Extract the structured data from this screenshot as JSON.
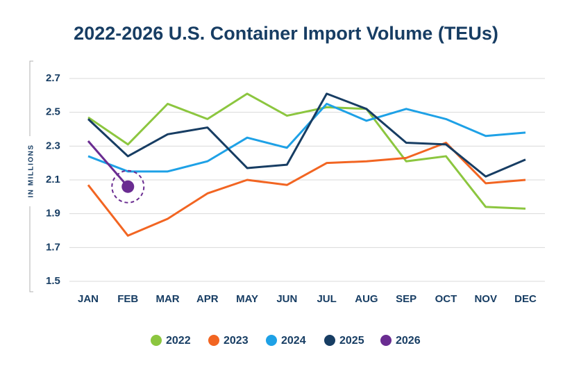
{
  "chart_data": {
    "type": "line",
    "title": "2022-2026 U.S. Container Import Volume (TEUs)",
    "y_axis_label": "IN MILLIONS",
    "categories": [
      "JAN",
      "FEB",
      "MAR",
      "APR",
      "MAY",
      "JUN",
      "JUL",
      "AUG",
      "SEP",
      "OCT",
      "NOV",
      "DEC"
    ],
    "series": [
      {
        "name": "2022",
        "color": "#8cc63f",
        "values": [
          2.47,
          2.31,
          2.55,
          2.46,
          2.61,
          2.48,
          2.53,
          2.52,
          2.21,
          2.24,
          1.94,
          1.93
        ]
      },
      {
        "name": "2023",
        "color": "#f26522",
        "values": [
          2.07,
          1.77,
          1.87,
          2.02,
          2.1,
          2.07,
          2.2,
          2.21,
          2.23,
          2.32,
          2.08,
          2.1
        ]
      },
      {
        "name": "2024",
        "color": "#1ea1e6",
        "values": [
          2.24,
          2.15,
          2.15,
          2.21,
          2.35,
          2.29,
          2.55,
          2.45,
          2.52,
          2.46,
          2.36,
          2.38
        ]
      },
      {
        "name": "2025",
        "color": "#173d63",
        "values": [
          2.46,
          2.24,
          2.37,
          2.41,
          2.17,
          2.19,
          2.61,
          2.52,
          2.32,
          2.31,
          2.12,
          2.22
        ]
      },
      {
        "name": "2026",
        "color": "#6a2c91",
        "values": [
          2.33,
          2.06,
          null,
          null,
          null,
          null,
          null,
          null,
          null,
          null,
          null,
          null
        ]
      }
    ],
    "ylim": [
      1.5,
      2.7
    ],
    "yticks": [
      1.5,
      1.7,
      1.9,
      2.1,
      2.3,
      2.5,
      2.7
    ],
    "grid": true,
    "legend": "bottom"
  }
}
